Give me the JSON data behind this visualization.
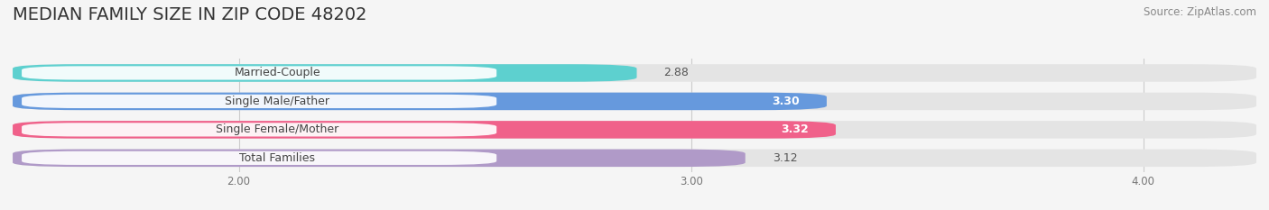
{
  "title": "MEDIAN FAMILY SIZE IN ZIP CODE 48202",
  "source": "Source: ZipAtlas.com",
  "categories": [
    "Married-Couple",
    "Single Male/Father",
    "Single Female/Mother",
    "Total Families"
  ],
  "values": [
    2.88,
    3.3,
    3.32,
    3.12
  ],
  "bar_colors": [
    "#5dd0cf",
    "#6699dd",
    "#f0618a",
    "#b09ac8"
  ],
  "value_label_colors": [
    "#555555",
    "#ffffff",
    "#ffffff",
    "#555555"
  ],
  "xlim_start": 1.5,
  "xlim_end": 4.25,
  "xticks": [
    2.0,
    3.0,
    4.0
  ],
  "xtick_labels": [
    "2.00",
    "3.00",
    "4.00"
  ],
  "bar_height": 0.62,
  "background_color": "#f5f5f5",
  "bar_bg_color": "#e4e4e4",
  "title_fontsize": 14,
  "source_fontsize": 8.5,
  "cat_fontsize": 9,
  "val_fontsize": 9
}
